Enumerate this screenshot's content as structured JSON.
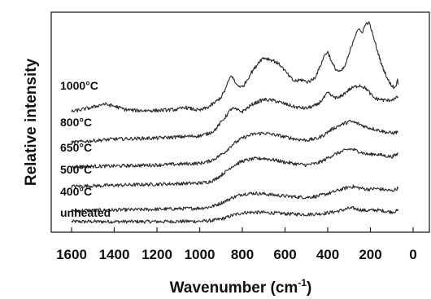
{
  "chart_data": {
    "type": "line",
    "title": "",
    "xlabel": "Wavenumber (cm",
    "xlabel_superscript": "-1",
    "xlabel_suffix": ")",
    "ylabel": "Relative intensity",
    "xlim": [
      1600,
      0
    ],
    "x_reversed": true,
    "x_ticks": [
      1600,
      1400,
      1200,
      1000,
      800,
      600,
      400,
      200,
      0
    ],
    "y_ticks_shown": false,
    "grid": false,
    "legend": "none (series labelled inline at left)",
    "y_units": "relative intensity, traces vertically offset, arbitrary units",
    "series": [
      {
        "name": "unheated",
        "x": [
          1600,
          1400,
          1200,
          1000,
          960,
          930,
          880,
          850,
          800,
          750,
          700,
          650,
          600,
          550,
          500,
          450,
          420,
          400,
          380,
          350,
          300,
          280,
          250,
          220,
          200,
          180,
          150,
          120,
          100,
          80,
          70
        ],
        "y": [
          0.0,
          0.0,
          0.0,
          0.03,
          0.07,
          0.12,
          0.32,
          0.55,
          0.8,
          0.85,
          0.83,
          0.78,
          0.72,
          0.68,
          0.65,
          0.7,
          0.74,
          0.8,
          0.86,
          0.96,
          1.2,
          1.22,
          1.08,
          1.0,
          1.02,
          1.06,
          1.0,
          0.92,
          0.88,
          0.95,
          1.0
        ]
      },
      {
        "name": "400°C",
        "x": [
          1600,
          1400,
          1200,
          1000,
          960,
          930,
          880,
          850,
          800,
          750,
          700,
          650,
          600,
          550,
          500,
          450,
          420,
          400,
          380,
          350,
          300,
          280,
          250,
          220,
          200,
          180,
          150,
          120,
          100,
          80,
          70
        ],
        "y": [
          1.0,
          1.05,
          1.12,
          1.22,
          1.3,
          1.45,
          1.85,
          2.15,
          2.5,
          2.58,
          2.52,
          2.42,
          2.32,
          2.25,
          2.2,
          2.3,
          2.45,
          2.55,
          2.65,
          2.85,
          3.15,
          3.18,
          3.05,
          2.95,
          2.95,
          3.0,
          2.95,
          2.85,
          2.8,
          2.95,
          3.05
        ]
      },
      {
        "name": "500°C",
        "x": [
          1600,
          1400,
          1200,
          1000,
          960,
          930,
          880,
          850,
          800,
          750,
          700,
          650,
          600,
          550,
          500,
          450,
          420,
          400,
          380,
          350,
          300,
          280,
          250,
          220,
          200,
          180,
          150,
          120,
          100,
          80,
          70
        ],
        "y": [
          3.2,
          3.3,
          3.4,
          3.5,
          3.6,
          3.8,
          4.5,
          5.0,
          5.5,
          5.7,
          5.75,
          5.6,
          5.4,
          5.25,
          5.15,
          5.3,
          5.55,
          5.8,
          6.0,
          6.25,
          6.6,
          6.55,
          6.35,
          6.15,
          6.1,
          6.15,
          6.05,
          5.95,
          5.9,
          6.05,
          6.2
        ]
      },
      {
        "name": "650°C",
        "x": [
          1600,
          1400,
          1200,
          1000,
          960,
          930,
          880,
          850,
          800,
          750,
          700,
          650,
          600,
          550,
          500,
          450,
          420,
          400,
          380,
          350,
          300,
          280,
          250,
          220,
          200,
          180,
          150,
          120,
          100,
          80,
          70
        ],
        "y": [
          5.0,
          5.05,
          5.15,
          5.3,
          5.45,
          5.7,
          6.35,
          6.95,
          7.6,
          7.95,
          8.05,
          7.9,
          7.7,
          7.5,
          7.4,
          7.55,
          7.85,
          8.15,
          8.4,
          8.7,
          9.1,
          9.05,
          8.85,
          8.6,
          8.5,
          8.4,
          8.25,
          8.1,
          8.05,
          8.1,
          8.2
        ]
      },
      {
        "name": "800°C",
        "x": [
          1600,
          1400,
          1200,
          1000,
          960,
          930,
          880,
          850,
          800,
          750,
          700,
          650,
          600,
          550,
          500,
          450,
          420,
          400,
          380,
          350,
          300,
          280,
          250,
          220,
          200,
          180,
          150,
          120,
          100,
          80,
          70
        ],
        "y": [
          7.2,
          7.5,
          7.6,
          7.8,
          8.0,
          8.3,
          9.5,
          10.3,
          10.0,
          10.7,
          11.1,
          11.0,
          10.7,
          10.4,
          10.3,
          10.6,
          11.2,
          11.7,
          11.4,
          11.2,
          12.0,
          12.2,
          12.4,
          12.1,
          11.6,
          11.2,
          11.1,
          11.0,
          11.1,
          11.2,
          11.4
        ]
      },
      {
        "name": "1000°C",
        "x": [
          1600,
          1500,
          1450,
          1400,
          1350,
          1300,
          1200,
          1100,
          1070,
          1050,
          1000,
          960,
          930,
          900,
          880,
          860,
          850,
          830,
          800,
          780,
          760,
          740,
          720,
          700,
          680,
          650,
          620,
          600,
          580,
          560,
          540,
          520,
          500,
          480,
          460,
          440,
          420,
          410,
          400,
          390,
          380,
          360,
          340,
          320,
          300,
          280,
          260,
          240,
          230,
          220,
          210,
          200,
          190,
          180,
          170,
          160,
          150,
          140,
          130,
          120,
          110,
          100,
          90,
          80,
          75,
          70
        ],
        "y": [
          10.0,
          10.4,
          10.7,
          10.5,
          10.2,
          10.1,
          10.1,
          10.2,
          10.4,
          10.3,
          10.1,
          10.4,
          10.8,
          11.3,
          12.0,
          13.0,
          13.3,
          12.5,
          12.2,
          12.8,
          13.5,
          14.0,
          14.6,
          14.9,
          14.8,
          14.6,
          14.2,
          13.7,
          13.2,
          12.8,
          12.8,
          12.9,
          12.7,
          12.8,
          13.1,
          13.9,
          14.9,
          15.3,
          15.4,
          15.0,
          14.4,
          13.8,
          13.6,
          14.1,
          15.2,
          16.5,
          17.5,
          17.2,
          17.6,
          18.0,
          18.1,
          17.8,
          17.0,
          16.4,
          15.7,
          15.1,
          14.4,
          13.9,
          13.5,
          13.0,
          12.6,
          12.4,
          12.2,
          12.3,
          13.0,
          12.6
        ]
      }
    ]
  }
}
